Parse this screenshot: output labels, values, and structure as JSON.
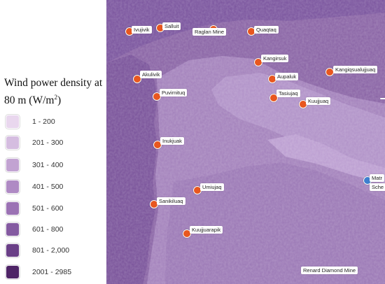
{
  "legend": {
    "title_main": "Wind power density at 80 m (W/m",
    "title_sup": "2",
    "title_end": ")",
    "items": [
      {
        "label": "1 - 200",
        "color": "#e9d7ee"
      },
      {
        "label": "201 - 300",
        "color": "#d5bde0"
      },
      {
        "label": "301 - 400",
        "color": "#c2a3d2"
      },
      {
        "label": "401 - 500",
        "color": "#af8ac4"
      },
      {
        "label": "501 - 600",
        "color": "#9b72b4"
      },
      {
        "label": "601 - 800",
        "color": "#845aa1"
      },
      {
        "label": "801 - 2,000",
        "color": "#6a3f87"
      },
      {
        "label": "2001 - 2985",
        "color": "#4e2466"
      }
    ]
  },
  "map": {
    "locations": [
      "Ivujivik",
      "Salluit",
      "Raglan Mine",
      "Quaqtaq",
      "Kangirsuk",
      "Kangiqsualujjuaq",
      "Akulivik",
      "Aupaluk",
      "Puvirnituq",
      "Tasiujaq",
      "Kuujjuaq",
      "Inukjuak",
      "Umiujaq",
      "Sanikiluaq",
      "Kuujjuarapik",
      "Renard Diamond Mine",
      "Matr",
      "Sche"
    ]
  }
}
